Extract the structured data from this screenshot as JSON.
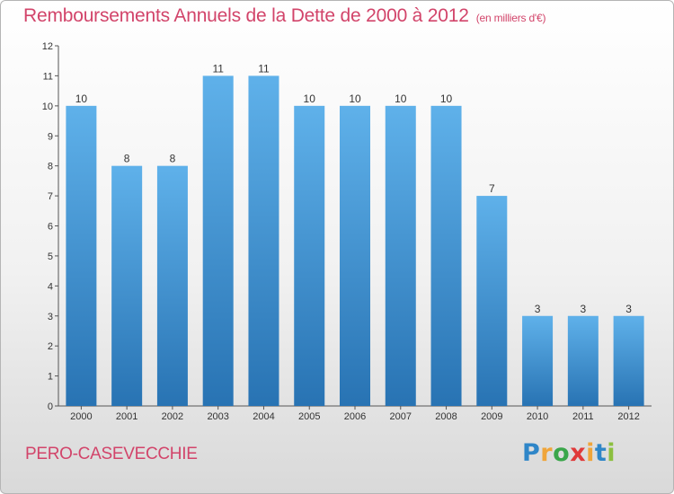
{
  "title_main": "Remboursements Annuels de la Dette de 2000 à 2012",
  "title_unit": "(en milliers d'€)",
  "commune": "PERO-CASEVECCHIE",
  "logo": {
    "letters": [
      "P",
      "r",
      "o",
      "x",
      "i",
      "t",
      "i"
    ],
    "colors": [
      "#2f86c8",
      "#f0a53a",
      "#3aa64a",
      "#e03a3a",
      "#f0a53a",
      "#2f86c8",
      "#8cbf3f"
    ]
  },
  "colors": {
    "bar": "#3d8fd3",
    "bar_light": "#5fb1ea",
    "bar_dark": "#2873b3",
    "title": "#d2446a"
  },
  "chart_data": {
    "type": "bar",
    "title": "Remboursements Annuels de la Dette de 2000 à 2012",
    "ylabel": "",
    "xlabel": "",
    "ylim": [
      0,
      12
    ],
    "grid": false,
    "y_ticks": [
      "0",
      "1",
      "2",
      "3",
      "4",
      "5",
      "6",
      "7",
      "8",
      "9",
      "10",
      "11",
      "12"
    ],
    "categories": [
      "2000",
      "2001",
      "2002",
      "2003",
      "2004",
      "2005",
      "2006",
      "2007",
      "2008",
      "2009",
      "2010",
      "2011",
      "2012"
    ],
    "values": [
      10,
      8,
      8,
      11,
      11,
      10,
      10,
      10,
      10,
      7,
      3,
      3,
      3
    ]
  }
}
